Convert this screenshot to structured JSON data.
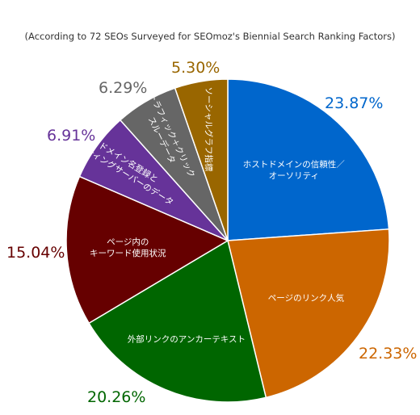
{
  "chart_data": {
    "type": "pie",
    "subtitle": "(According to 72 SEOs Surveyed for SEOmoz's Biennial Search Ranking Factors)",
    "slices": [
      {
        "label": [
          "ホストドメインの信頼性／",
          "オーソリティ"
        ],
        "value": 23.87,
        "value_label": "23.87%",
        "color": "#0066cc"
      },
      {
        "label": [
          "ページのリンク人気"
        ],
        "value": 22.33,
        "value_label": "22.33%",
        "color": "#cc6600"
      },
      {
        "label": [
          "外部リンクのアンカーテキスト"
        ],
        "value": 20.26,
        "value_label": "20.26%",
        "color": "#006600"
      },
      {
        "label": [
          "ページ内の",
          "キーワード使用状況"
        ],
        "value": 15.04,
        "value_label": "15.04%",
        "color": "#660000"
      },
      {
        "label": [
          "ドメイン名登録と",
          "ホスティングサーバーのデータ"
        ],
        "value": 6.91,
        "value_label": "6.91%",
        "color": "#663399"
      },
      {
        "label": [
          "トラフィック＋クリック",
          "スルーデータ"
        ],
        "value": 6.29,
        "value_label": "6.29%",
        "color": "#666666"
      },
      {
        "label": [
          "ソーシャルグラフ指標"
        ],
        "value": 5.3,
        "value_label": "5.30%",
        "color": "#996600"
      }
    ]
  }
}
